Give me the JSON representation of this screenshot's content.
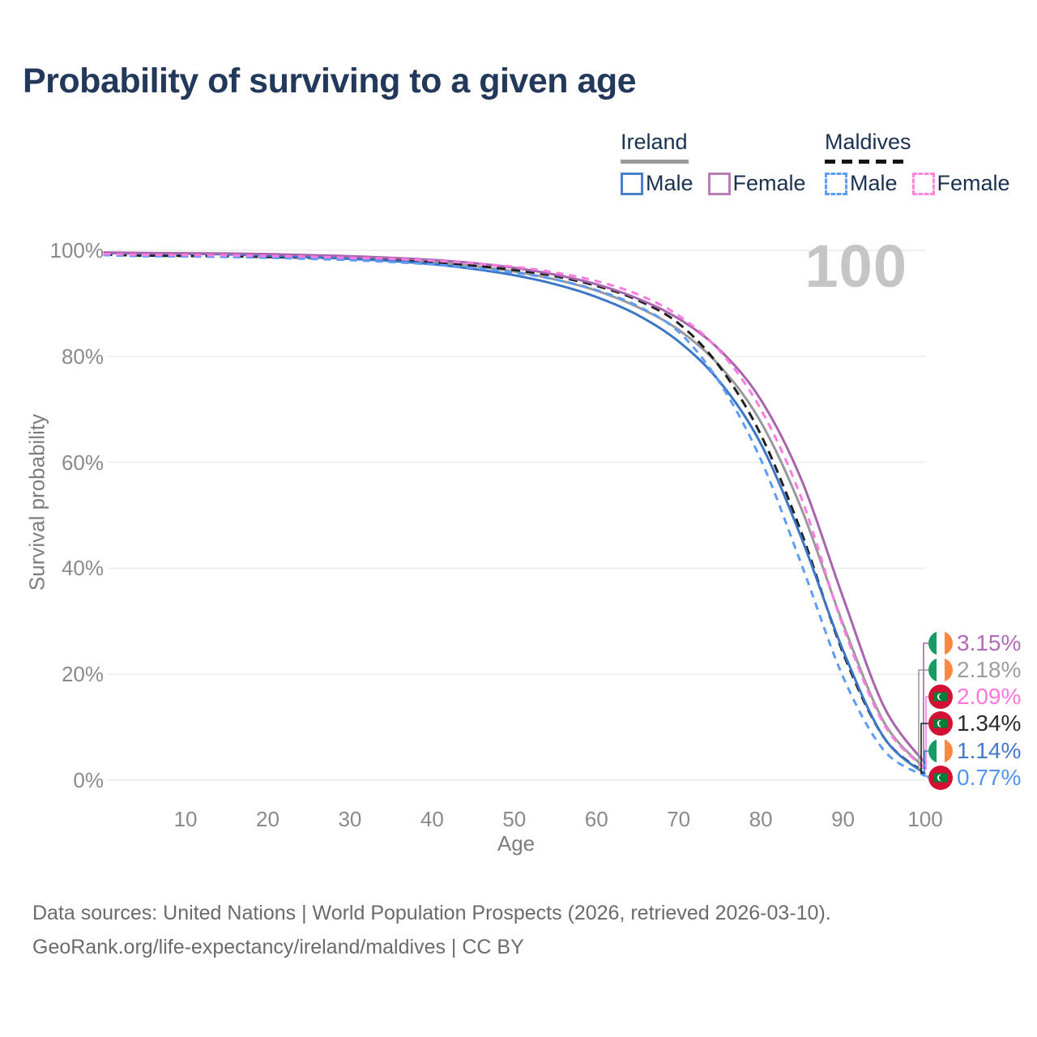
{
  "title": "Probability of surviving to a given age",
  "watermark": "100",
  "legend": {
    "groups": [
      {
        "label": "Ireland",
        "underline_style": "solid",
        "underline_color": "#9a9a9a",
        "items": [
          {
            "label": "Male",
            "color": "#4a7fc9",
            "dashed": false
          },
          {
            "label": "Female",
            "color": "#b87fb9",
            "dashed": false
          }
        ]
      },
      {
        "label": "Maldives",
        "underline_style": "dashed",
        "underline_color": "#141414",
        "items": [
          {
            "label": "Male",
            "color": "#5e9cf8",
            "dashed": true
          },
          {
            "label": "Female",
            "color": "#ff85e0",
            "dashed": true
          }
        ]
      }
    ]
  },
  "chart_data": {
    "type": "line",
    "title": "Probability of surviving to a given age",
    "xlabel": "Age",
    "ylabel": "Survival probability",
    "xlim": [
      0,
      100
    ],
    "ylim": [
      0,
      100
    ],
    "grid": "horizontal-only",
    "legend_position": "top-right",
    "x_ticks": [
      10,
      20,
      30,
      40,
      50,
      60,
      70,
      80,
      90,
      100
    ],
    "y_ticks": [
      0,
      20,
      40,
      60,
      80,
      100
    ],
    "y_tick_labels": [
      "0%",
      "20%",
      "40%",
      "60%",
      "80%",
      "100%"
    ],
    "hover_age": "100",
    "x": [
      0,
      5,
      10,
      15,
      20,
      25,
      30,
      35,
      40,
      45,
      50,
      55,
      60,
      65,
      70,
      75,
      80,
      85,
      90,
      95,
      100
    ],
    "series": [
      {
        "id": "ireland-female",
        "name": "Ireland Female",
        "country": "Ireland",
        "sex": "Female",
        "color": "#a864ac",
        "dash": "solid",
        "z": 4,
        "values": [
          99.6,
          99.5,
          99.45,
          99.4,
          99.3,
          99.1,
          98.9,
          98.6,
          98.2,
          97.6,
          96.7,
          95.4,
          93.6,
          90.9,
          87.1,
          81.2,
          71.8,
          56.5,
          34.5,
          13.8,
          3.15
        ],
        "end_label": {
          "text": "3.15%",
          "color": "#b46ab8",
          "flag": "ireland"
        }
      },
      {
        "id": "ireland-both",
        "name": "Ireland (both sexes)",
        "country": "Ireland",
        "sex": "Both",
        "color": "#999999",
        "dash": "solid",
        "z": 1,
        "values": [
          99.55,
          99.45,
          99.4,
          99.32,
          99.15,
          98.9,
          98.65,
          98.3,
          97.8,
          97.05,
          96.0,
          94.5,
          92.4,
          89.3,
          85.0,
          78.2,
          67.6,
          51.0,
          29.5,
          10.9,
          2.18
        ],
        "end_label": {
          "text": "2.18%",
          "color": "#9e9e9e",
          "flag": "ireland"
        }
      },
      {
        "id": "maldives-female",
        "name": "Maldives Female",
        "country": "Maldives",
        "sex": "Female",
        "color": "#fa7ce0",
        "dash": "9 7",
        "z": 6,
        "values": [
          99.3,
          99.15,
          99.1,
          99.05,
          98.95,
          98.8,
          98.6,
          98.4,
          98.05,
          97.55,
          96.9,
          95.8,
          94.2,
          91.7,
          87.7,
          81.0,
          70.0,
          53.0,
          29.0,
          10.5,
          2.09
        ],
        "end_label": {
          "text": "2.09%",
          "color": "#ff77dd",
          "flag": "maldives"
        }
      },
      {
        "id": "maldives-both",
        "name": "Maldives (both sexes)",
        "country": "Maldives",
        "sex": "Both",
        "color": "#1f1f1f",
        "dash": "11 7",
        "z": 2,
        "values": [
          99.2,
          99.0,
          98.95,
          98.88,
          98.75,
          98.6,
          98.4,
          98.1,
          97.7,
          97.1,
          96.3,
          95.1,
          93.3,
          90.6,
          86.2,
          78.0,
          65.2,
          46.5,
          24.0,
          8.0,
          1.34
        ],
        "end_label": {
          "text": "1.34%",
          "color": "#2b2b2b",
          "flag": "maldives"
        }
      },
      {
        "id": "ireland-male",
        "name": "Ireland Male",
        "country": "Ireland",
        "sex": "Male",
        "color": "#3c76c6",
        "dash": "solid",
        "z": 3,
        "values": [
          99.5,
          99.4,
          99.35,
          99.25,
          99.0,
          98.7,
          98.4,
          98.0,
          97.4,
          96.5,
          95.3,
          93.6,
          91.2,
          87.8,
          82.8,
          75.2,
          63.5,
          45.5,
          24.5,
          8.0,
          1.14
        ],
        "end_label": {
          "text": "1.14%",
          "color": "#4379ca",
          "flag": "ireland"
        }
      },
      {
        "id": "maldives-male",
        "name": "Maldives Male",
        "country": "Maldives",
        "sex": "Male",
        "color": "#5e9cf8",
        "dash": "9 7",
        "z": 5,
        "values": [
          99.1,
          98.9,
          98.85,
          98.75,
          98.6,
          98.4,
          98.15,
          97.8,
          97.35,
          96.7,
          95.8,
          94.5,
          92.5,
          89.5,
          84.6,
          75.0,
          60.5,
          40.5,
          19.5,
          5.6,
          0.77
        ],
        "end_label": {
          "text": "0.77%",
          "color": "#5095f0",
          "flag": "maldives"
        }
      }
    ]
  },
  "colors": {
    "title": "#22395b",
    "legend_text": "#1b3150",
    "tick_text": "#8a8a8a",
    "axis_title_text": "#7d7d7d",
    "gridline": "#ececec",
    "watermark": "#c5c5c5",
    "footer_text": "#6b6b6b",
    "flag_ireland": [
      "#169b62",
      "#ffffff",
      "#ff883e"
    ],
    "flag_maldives": [
      "#d21034",
      "#007e3a",
      "#ffffff"
    ]
  },
  "footer": {
    "line1": "Data sources: United Nations | World Population Prospects (2026, retrieved 2026-03-10).",
    "line2": "GeoRank.org/life-expectancy/ireland/maldives | CC BY"
  }
}
